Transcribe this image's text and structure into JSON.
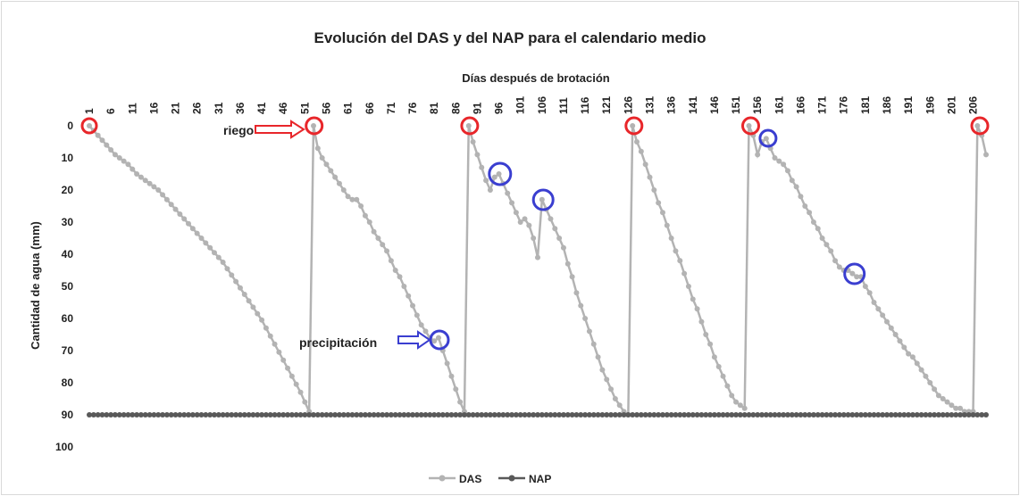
{
  "chart_data": {
    "type": "line",
    "title": "Evolución del DAS y del NAP para el calendario medio",
    "x_label": "Días después de brotación",
    "y_label": "Cantidad de agua (mm)",
    "annotations": [
      "riego",
      "precipitación"
    ],
    "x": [
      1,
      2,
      3,
      4,
      5,
      6,
      7,
      8,
      9,
      10,
      11,
      12,
      13,
      14,
      15,
      16,
      17,
      18,
      19,
      20,
      21,
      22,
      23,
      24,
      25,
      26,
      27,
      28,
      29,
      30,
      31,
      32,
      33,
      34,
      35,
      36,
      37,
      38,
      39,
      40,
      41,
      42,
      43,
      44,
      45,
      46,
      47,
      48,
      49,
      50,
      51,
      52,
      53,
      54,
      55,
      56,
      57,
      58,
      59,
      60,
      61,
      62,
      63,
      64,
      65,
      66,
      67,
      68,
      69,
      70,
      71,
      72,
      73,
      74,
      75,
      76,
      77,
      78,
      79,
      80,
      81,
      82,
      83,
      84,
      85,
      86,
      87,
      88,
      89,
      90,
      91,
      92,
      93,
      94,
      95,
      96,
      97,
      98,
      99,
      100,
      101,
      102,
      103,
      104,
      105,
      106,
      107,
      108,
      109,
      110,
      111,
      112,
      113,
      114,
      115,
      116,
      117,
      118,
      119,
      120,
      121,
      122,
      123,
      124,
      125,
      126,
      127,
      128,
      129,
      130,
      131,
      132,
      133,
      134,
      135,
      136,
      137,
      138,
      139,
      140,
      141,
      142,
      143,
      144,
      145,
      146,
      147,
      148,
      149,
      150,
      151,
      152,
      153,
      154,
      155,
      156,
      157,
      158,
      159,
      160,
      161,
      162,
      163,
      164,
      165,
      166,
      167,
      168,
      169,
      170,
      171,
      172,
      173,
      174,
      175,
      176,
      177,
      178,
      179,
      180,
      181,
      182,
      183,
      184,
      185,
      186,
      187,
      188,
      189,
      190,
      191,
      192,
      193,
      194,
      195,
      196,
      197,
      198,
      199,
      200,
      201,
      202,
      203,
      204,
      205,
      206,
      207,
      208,
      209
    ],
    "series": [
      {
        "name": "DAS",
        "color": "#b3b3b3",
        "values": [
          0,
          1.5,
          3,
          4.5,
          6,
          7.5,
          9,
          10,
          11,
          12,
          13.5,
          15,
          16,
          17,
          18,
          19,
          20,
          21.5,
          23,
          24.5,
          26,
          27.5,
          29,
          30.5,
          32,
          33.5,
          35,
          36.5,
          38,
          39.5,
          41,
          42.5,
          44.5,
          46.5,
          48.5,
          50.5,
          52.5,
          54.5,
          56.5,
          58.5,
          60.5,
          63,
          65.5,
          68,
          70.5,
          73,
          75.5,
          78,
          80.5,
          83,
          86,
          89,
          0,
          7,
          10,
          12,
          14,
          16,
          18,
          20,
          22,
          23,
          23,
          25,
          28,
          30,
          33,
          35,
          37,
          39,
          42,
          45,
          47,
          50,
          53,
          56,
          59,
          62,
          64,
          66,
          67,
          66,
          70,
          74,
          78,
          82,
          86,
          89,
          0,
          5,
          9,
          13,
          17,
          20,
          16,
          15,
          18,
          21,
          24,
          27,
          30,
          29,
          31,
          35,
          41,
          23,
          26,
          29,
          32,
          35,
          38,
          43,
          47,
          52,
          56,
          60,
          64,
          68,
          72,
          76,
          79,
          82,
          85,
          87,
          89,
          90,
          0,
          5,
          8,
          12,
          16,
          20,
          24,
          27,
          31,
          35,
          39,
          42,
          46,
          50,
          54,
          57,
          61,
          65,
          68,
          72,
          75,
          78,
          81,
          84,
          86,
          87,
          88,
          0,
          3,
          9,
          5,
          4,
          7,
          10,
          11,
          12,
          14,
          17,
          19,
          22,
          25,
          27,
          30,
          32,
          35,
          37,
          39,
          42,
          44,
          45,
          45,
          46,
          47,
          47,
          50,
          52,
          55,
          57,
          59,
          61,
          63,
          65,
          67,
          69,
          71,
          72,
          74,
          76,
          78,
          80,
          82,
          84,
          85,
          86,
          87,
          88,
          88,
          89,
          89,
          89,
          0,
          3,
          9
        ]
      },
      {
        "name": "NAP",
        "color": "#595959",
        "values": [
          90,
          90,
          90,
          90,
          90,
          90,
          90,
          90,
          90,
          90,
          90,
          90,
          90,
          90,
          90,
          90,
          90,
          90,
          90,
          90,
          90,
          90,
          90,
          90,
          90,
          90,
          90,
          90,
          90,
          90,
          90,
          90,
          90,
          90,
          90,
          90,
          90,
          90,
          90,
          90,
          90,
          90,
          90,
          90,
          90,
          90,
          90,
          90,
          90,
          90,
          90,
          90,
          90,
          90,
          90,
          90,
          90,
          90,
          90,
          90,
          90,
          90,
          90,
          90,
          90,
          90,
          90,
          90,
          90,
          90,
          90,
          90,
          90,
          90,
          90,
          90,
          90,
          90,
          90,
          90,
          90,
          90,
          90,
          90,
          90,
          90,
          90,
          90,
          90,
          90,
          90,
          90,
          90,
          90,
          90,
          90,
          90,
          90,
          90,
          90,
          90,
          90,
          90,
          90,
          90,
          90,
          90,
          90,
          90,
          90,
          90,
          90,
          90,
          90,
          90,
          90,
          90,
          90,
          90,
          90,
          90,
          90,
          90,
          90,
          90,
          90,
          90,
          90,
          90,
          90,
          90,
          90,
          90,
          90,
          90,
          90,
          90,
          90,
          90,
          90,
          90,
          90,
          90,
          90,
          90,
          90,
          90,
          90,
          90,
          90,
          90,
          90,
          90,
          90,
          90,
          90,
          90,
          90,
          90,
          90,
          90,
          90,
          90,
          90,
          90,
          90,
          90,
          90,
          90,
          90,
          90,
          90,
          90,
          90,
          90,
          90,
          90,
          90,
          90,
          90,
          90,
          90,
          90,
          90,
          90,
          90,
          90,
          90,
          90,
          90,
          90,
          90,
          90,
          90,
          90,
          90,
          90,
          90,
          90,
          90,
          90,
          90,
          90,
          90,
          90,
          90,
          90,
          90,
          90
        ]
      }
    ],
    "xlim": [
      1,
      209
    ],
    "xticks": [
      1,
      6,
      11,
      16,
      21,
      26,
      31,
      36,
      41,
      46,
      51,
      56,
      61,
      66,
      71,
      76,
      81,
      86,
      91,
      96,
      101,
      106,
      111,
      116,
      121,
      126,
      131,
      136,
      141,
      146,
      151,
      156,
      161,
      166,
      171,
      176,
      181,
      186,
      191,
      196,
      201,
      206
    ],
    "ylim": [
      0,
      100
    ],
    "y_inverted": true,
    "yticks": [
      0,
      10,
      20,
      30,
      40,
      50,
      60,
      70,
      80,
      90,
      100
    ],
    "grid": false,
    "legend": "bottom"
  }
}
